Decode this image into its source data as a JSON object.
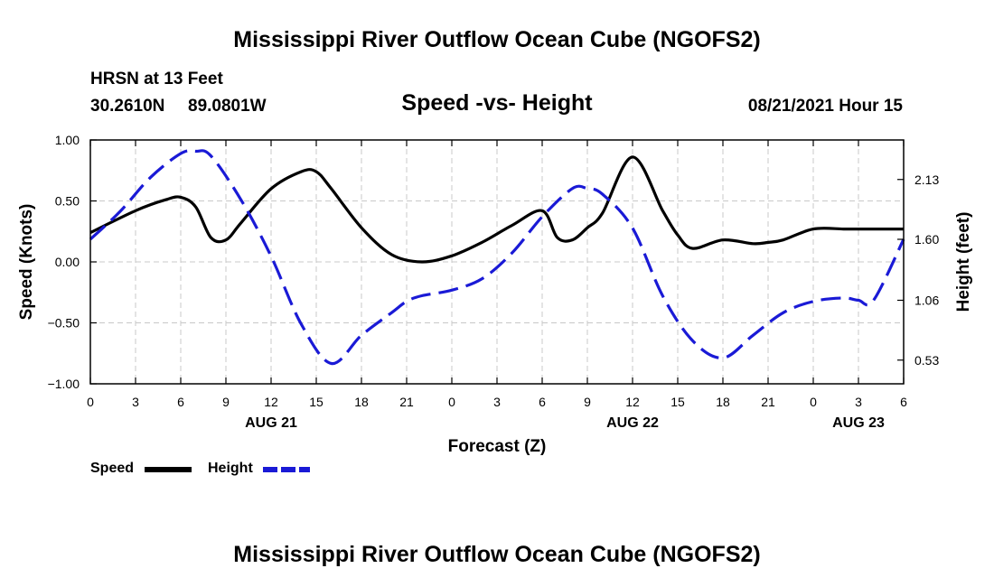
{
  "title": "Mississippi River Outflow Ocean Cube (NGOFS2)",
  "footer_title": "Mississippi River Outflow Ocean Cube (NGOFS2)",
  "station": {
    "name": "HRSN at 13 Feet",
    "lat": "30.2610N",
    "lon": "89.0801W",
    "timestamp": "08/21/2021 Hour 15"
  },
  "colors": {
    "speed": "#000000",
    "height": "#1a1ad6",
    "grid": "#c8c8c8"
  },
  "chart_data": {
    "type": "line",
    "title": "Speed -vs- Height",
    "xlabel": "Forecast (Z)",
    "ylabel": "Speed (Knots)",
    "y2label": "Height (feet)",
    "xlim": [
      0,
      54
    ],
    "ylim": [
      -1.0,
      1.0
    ],
    "y2lim": [
      0.32,
      2.48
    ],
    "grid": true,
    "x_ticks": [
      0,
      3,
      6,
      9,
      12,
      15,
      18,
      21,
      24,
      27,
      30,
      33,
      36,
      39,
      42,
      45,
      48,
      51,
      54
    ],
    "x_tick_labels": [
      "0",
      "3",
      "6",
      "9",
      "12",
      "15",
      "18",
      "21",
      "0",
      "3",
      "6",
      "9",
      "12",
      "15",
      "18",
      "21",
      "0",
      "3",
      "6"
    ],
    "y_ticks": [
      -1.0,
      -0.5,
      0.0,
      0.5,
      1.0
    ],
    "y_tick_labels": [
      "−1.00",
      "−0.50",
      "0.00",
      "0.50",
      "1.00"
    ],
    "y2_ticks": [
      0.53,
      1.06,
      1.6,
      2.13
    ],
    "y2_tick_labels": [
      "0.53",
      "1.06",
      "1.60",
      "2.13"
    ],
    "date_labels": [
      {
        "x": 12,
        "label": "AUG 21"
      },
      {
        "x": 36,
        "label": "AUG 22"
      },
      {
        "x": 51,
        "label": "AUG 23"
      }
    ],
    "legend_position": "bottom-left",
    "series": [
      {
        "name": "Speed",
        "axis": "left",
        "style": "solid",
        "x": [
          0,
          3,
          5,
          6,
          7,
          8,
          9,
          10,
          12,
          14,
          15,
          16,
          18,
          20,
          22,
          24,
          26,
          28,
          30,
          31,
          32,
          33,
          34,
          36,
          38,
          39,
          40,
          42,
          44,
          45,
          46,
          48,
          50,
          51,
          52,
          54
        ],
        "values": [
          0.24,
          0.42,
          0.51,
          0.53,
          0.45,
          0.2,
          0.18,
          0.32,
          0.6,
          0.74,
          0.74,
          0.6,
          0.28,
          0.06,
          0.0,
          0.05,
          0.16,
          0.3,
          0.42,
          0.2,
          0.18,
          0.28,
          0.4,
          0.86,
          0.42,
          0.22,
          0.11,
          0.18,
          0.15,
          0.16,
          0.18,
          0.27,
          0.27,
          0.27,
          0.27,
          0.27
        ]
      },
      {
        "name": "Height",
        "axis": "right",
        "style": "dashed",
        "x": [
          0,
          2,
          4,
          6,
          7,
          8,
          10,
          12,
          14,
          16,
          18,
          20,
          21,
          22,
          24,
          26,
          28,
          30,
          32,
          33,
          34,
          36,
          38,
          40,
          42,
          44,
          46,
          48,
          50,
          51,
          52,
          54
        ],
        "values": [
          1.6,
          1.85,
          2.15,
          2.36,
          2.38,
          2.34,
          1.95,
          1.45,
          0.85,
          0.5,
          0.75,
          0.95,
          1.05,
          1.1,
          1.15,
          1.25,
          1.48,
          1.8,
          2.05,
          2.05,
          2.0,
          1.7,
          1.1,
          0.7,
          0.55,
          0.75,
          0.95,
          1.05,
          1.08,
          1.06,
          1.06,
          1.6
        ]
      }
    ]
  },
  "legend": {
    "speed_label": "Speed",
    "height_label": "Height"
  }
}
